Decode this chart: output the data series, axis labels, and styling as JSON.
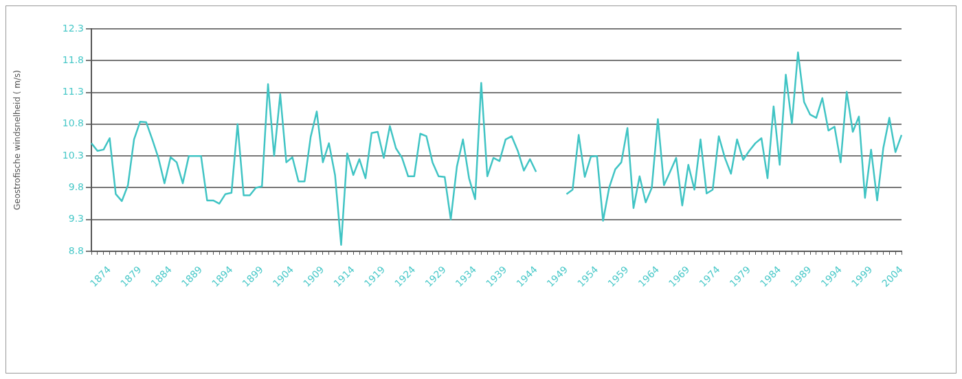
{
  "chart_data": {
    "type": "line",
    "ylabel": "Geostrofische windsnelheid ( m/s)",
    "categories": [
      null,
      null,
      null,
      "1874",
      null,
      null,
      null,
      null,
      "1879",
      null,
      null,
      null,
      null,
      "1884",
      null,
      null,
      null,
      null,
      "1889",
      null,
      null,
      null,
      null,
      "1894",
      null,
      null,
      null,
      null,
      "1899",
      null,
      null,
      null,
      null,
      "1904",
      null,
      null,
      null,
      null,
      "1909",
      null,
      null,
      null,
      null,
      "1914",
      null,
      null,
      null,
      null,
      "1919",
      null,
      null,
      null,
      null,
      "1924",
      null,
      null,
      null,
      null,
      "1929",
      null,
      null,
      null,
      null,
      "1934",
      null,
      null,
      null,
      null,
      "1939",
      null,
      null,
      null,
      null,
      "1944",
      null,
      null,
      null,
      null,
      "1949",
      null,
      null,
      null,
      null,
      "1954",
      null,
      null,
      null,
      null,
      "1959",
      null,
      null,
      null,
      null,
      "1964",
      null,
      null,
      null,
      null,
      "1969",
      null,
      null,
      null,
      null,
      "1974",
      null,
      null,
      null,
      null,
      "1979",
      null,
      null,
      null,
      null,
      "1984",
      null,
      null,
      null,
      null,
      "1989",
      null,
      null,
      null,
      null,
      "1994",
      null,
      null,
      null,
      null,
      "1999",
      null,
      null,
      null,
      null,
      "2004"
    ],
    "series": [
      {
        "color": "#40c4c4",
        "values": [
          10.5,
          10.38,
          10.4,
          10.58,
          9.7,
          9.59,
          9.84,
          10.56,
          10.84,
          10.83,
          10.56,
          10.27,
          9.87,
          10.28,
          10.2,
          9.87,
          10.3,
          10.3,
          10.3,
          9.6,
          9.6,
          9.55,
          9.7,
          9.72,
          10.8,
          9.68,
          9.68,
          9.8,
          9.82,
          11.43,
          10.3,
          11.27,
          10.2,
          10.28,
          9.9,
          9.9,
          10.6,
          11.0,
          10.2,
          10.5,
          10.0,
          8.9,
          10.34,
          10.0,
          10.25,
          9.95,
          10.66,
          10.68,
          10.27,
          10.77,
          10.42,
          10.27,
          9.98,
          9.98,
          10.65,
          10.61,
          10.2,
          9.98,
          9.97,
          9.3,
          10.13,
          10.56,
          9.95,
          9.62,
          11.45,
          9.98,
          10.27,
          10.22,
          10.56,
          10.61,
          10.38,
          10.07,
          10.25,
          10.05,
          null,
          null,
          null,
          null,
          9.7,
          9.77,
          10.63,
          9.97,
          10.29,
          10.3,
          9.28,
          9.8,
          10.09,
          10.2,
          10.74,
          9.48,
          9.98,
          9.57,
          9.8,
          10.88,
          9.84,
          10.05,
          10.27,
          9.52,
          10.16,
          9.77,
          10.56,
          9.71,
          9.77,
          10.61,
          10.27,
          10.02,
          10.56,
          10.24,
          10.38,
          10.5,
          10.58,
          9.95,
          11.08,
          10.16,
          11.58,
          10.81,
          11.93,
          11.15,
          10.95,
          10.9,
          11.21,
          10.7,
          10.76,
          10.2,
          11.31,
          10.68,
          10.92,
          9.64,
          10.4,
          9.6,
          10.42,
          10.9,
          10.36,
          10.63
        ]
      }
    ],
    "ylim": [
      8.8,
      12.3
    ],
    "yticks": [
      8.8,
      9.3,
      9.8,
      10.3,
      10.8,
      11.3,
      11.8,
      12.3
    ],
    "grid": "y",
    "marker": "none",
    "line_style": "solid",
    "legend": false
  }
}
